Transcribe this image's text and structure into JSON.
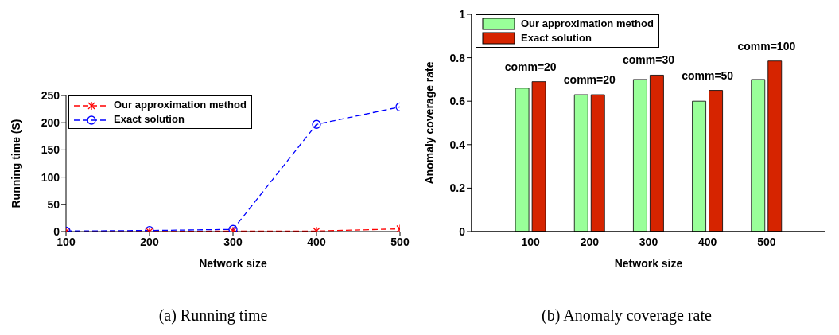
{
  "chart_data": [
    {
      "type": "line",
      "title": "(a) Running time",
      "xlabel": "Network size",
      "ylabel": "Running time (S)",
      "x": [
        100,
        200,
        300,
        400,
        500
      ],
      "xlim": [
        100,
        500
      ],
      "xticks": [
        100,
        200,
        300,
        400,
        500
      ],
      "ylim": [
        0,
        250
      ],
      "yticks": [
        0,
        50,
        100,
        150,
        200,
        250
      ],
      "legend": "top left",
      "line_style": "dashed",
      "series": [
        {
          "name": "Our approximation method",
          "color": "#ff0000",
          "marker": "cross",
          "values": [
            0,
            0,
            1,
            1,
            5
          ]
        },
        {
          "name": "Exact solution",
          "color": "#0000ff",
          "marker": "circle",
          "values": [
            1,
            2,
            4,
            197,
            229
          ]
        }
      ]
    },
    {
      "type": "bar",
      "title": "(b) Anomaly coverage rate",
      "xlabel": "Network size",
      "ylabel": "Anomaly coverage rate",
      "categories": [
        "100",
        "200",
        "300",
        "400",
        "500"
      ],
      "ylim": [
        0,
        1
      ],
      "yticks": [
        0,
        0.2,
        0.4,
        0.6,
        0.8,
        1
      ],
      "legend": "top left",
      "series": [
        {
          "name": "Our approximation method",
          "color": "#99ff99",
          "values": [
            0.66,
            0.63,
            0.7,
            0.6,
            0.7
          ]
        },
        {
          "name": "Exact solution",
          "color": "#d62400",
          "values": [
            0.69,
            0.63,
            0.72,
            0.65,
            0.785
          ]
        }
      ],
      "annotations": [
        {
          "text": "comm=20",
          "x": "100",
          "y": 0.69
        },
        {
          "text": "comm=20",
          "x": "200",
          "y": 0.63
        },
        {
          "text": "comm=30",
          "x": "300",
          "y": 0.72
        },
        {
          "text": "comm=50",
          "x": "400",
          "y": 0.65
        },
        {
          "text": "comm=100",
          "x": "500",
          "y": 0.785
        }
      ]
    }
  ]
}
